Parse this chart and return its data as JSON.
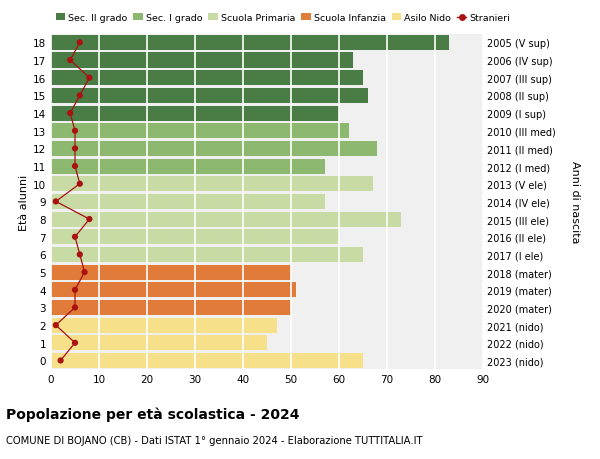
{
  "ages": [
    0,
    1,
    2,
    3,
    4,
    5,
    6,
    7,
    8,
    9,
    10,
    11,
    12,
    13,
    14,
    15,
    16,
    17,
    18
  ],
  "right_labels": [
    "2023 (nido)",
    "2022 (nido)",
    "2021 (nido)",
    "2020 (mater)",
    "2019 (mater)",
    "2018 (mater)",
    "2017 (I ele)",
    "2016 (II ele)",
    "2015 (III ele)",
    "2014 (IV ele)",
    "2013 (V ele)",
    "2012 (I med)",
    "2011 (II med)",
    "2010 (III med)",
    "2009 (I sup)",
    "2008 (II sup)",
    "2007 (III sup)",
    "2006 (IV sup)",
    "2005 (V sup)"
  ],
  "bar_values": [
    65,
    45,
    47,
    50,
    51,
    50,
    65,
    60,
    73,
    57,
    67,
    57,
    68,
    62,
    60,
    66,
    65,
    63,
    83
  ],
  "bar_colors": [
    "#f7e08a",
    "#f7e08a",
    "#f7e08a",
    "#e07b39",
    "#e07b39",
    "#e07b39",
    "#c9dba4",
    "#c9dba4",
    "#c9dba4",
    "#c9dba4",
    "#c9dba4",
    "#8db870",
    "#8db870",
    "#8db870",
    "#4a7c45",
    "#4a7c45",
    "#4a7c45",
    "#4a7c45",
    "#4a7c45"
  ],
  "stranieri_values": [
    2,
    5,
    1,
    5,
    5,
    7,
    6,
    5,
    8,
    1,
    6,
    5,
    5,
    5,
    4,
    6,
    8,
    4,
    6
  ],
  "legend_labels": [
    "Sec. II grado",
    "Sec. I grado",
    "Scuola Primaria",
    "Scuola Infanzia",
    "Asilo Nido",
    "Stranieri"
  ],
  "legend_colors": [
    "#4a7c45",
    "#8db870",
    "#c9dba4",
    "#e07b39",
    "#f7e08a",
    "#aa1111"
  ],
  "ylabel_left": "Età alunni",
  "ylabel_right": "Anni di nascita",
  "title": "Popolazione per età scolastica - 2024",
  "subtitle": "COMUNE DI BOJANO (CB) - Dati ISTAT 1° gennaio 2024 - Elaborazione TUTTITALIA.IT",
  "xlim": [
    0,
    90
  ],
  "xticks": [
    0,
    10,
    20,
    30,
    40,
    50,
    60,
    70,
    80,
    90
  ],
  "background_color": "#ffffff",
  "bar_background": "#f0f0f0"
}
